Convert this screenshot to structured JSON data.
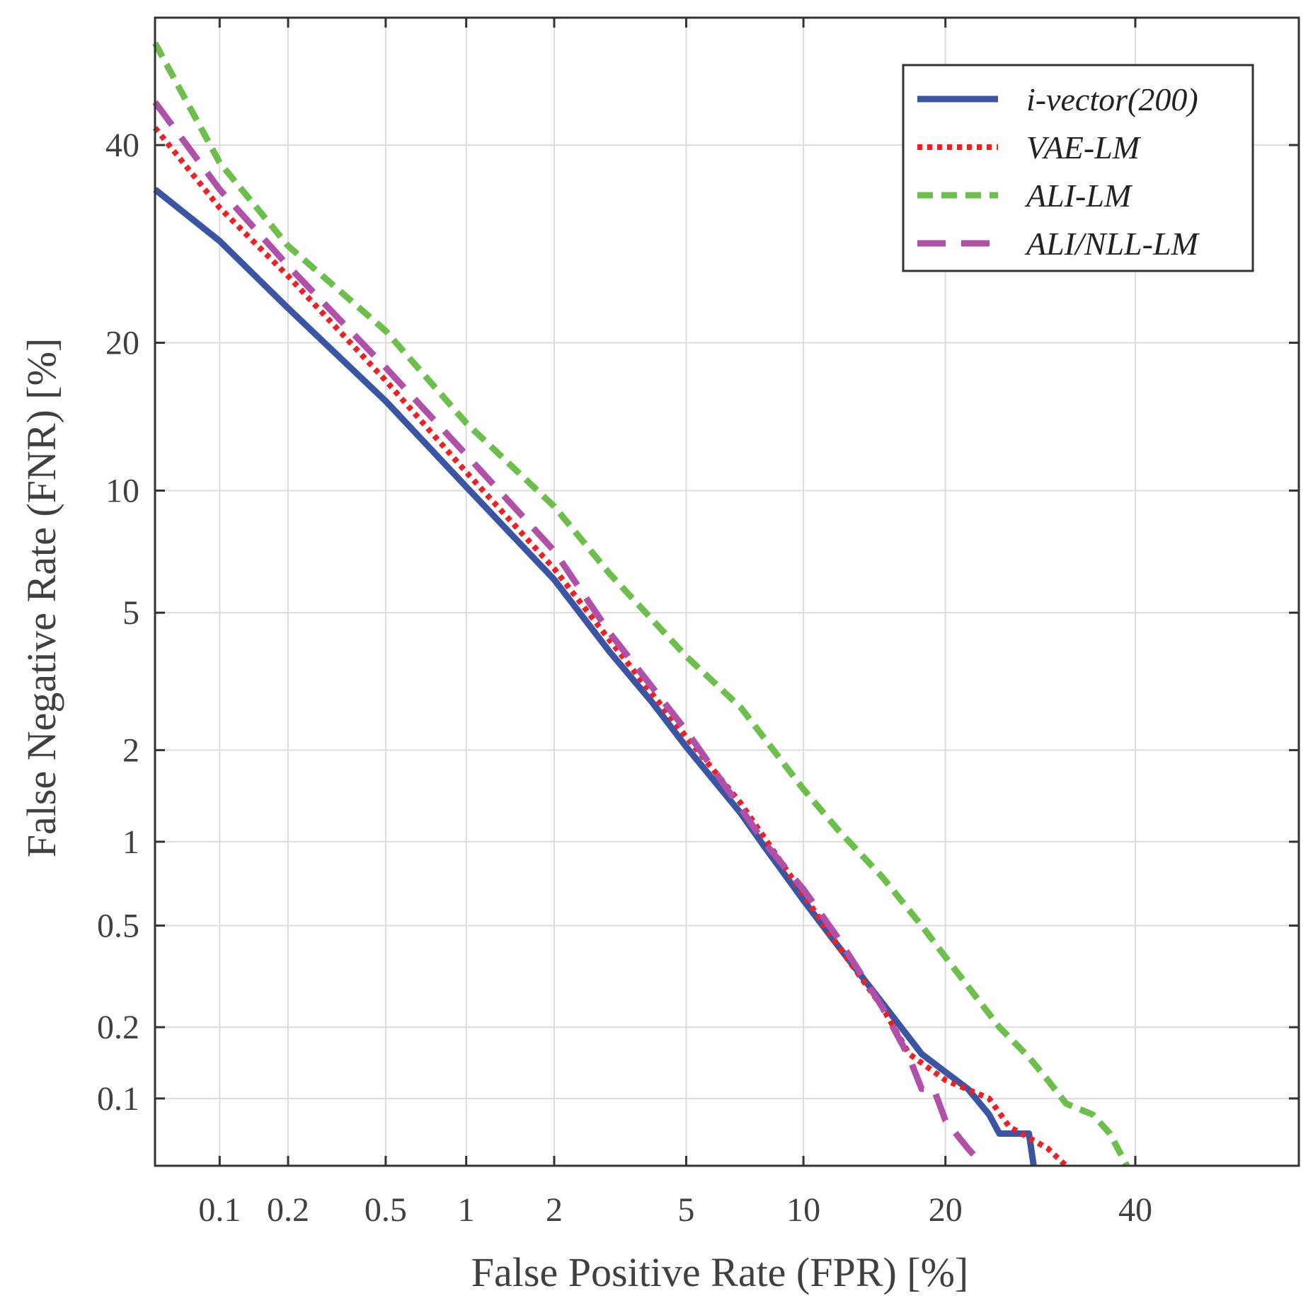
{
  "chart_data": {
    "type": "line",
    "subtype": "DET",
    "title": "",
    "xlabel": "False Positive Rate (FPR) [%]",
    "ylabel": "False Negative Rate (FNR) [%]",
    "scale": "probit",
    "xlim": [
      0.05,
      60
    ],
    "ylim": [
      0.05,
      55
    ],
    "grid": true,
    "legend_position": "top-right",
    "x_ticks": [
      0.1,
      0.2,
      0.5,
      1,
      2,
      5,
      10,
      20,
      40
    ],
    "x_tick_labels": [
      "0.1",
      "0.2",
      "0.5",
      "1",
      "2",
      "5",
      "10",
      "20",
      "40"
    ],
    "y_ticks": [
      0.1,
      0.2,
      0.5,
      1,
      2,
      5,
      10,
      20,
      40
    ],
    "y_tick_labels": [
      "0.1",
      "0.2",
      "0.5",
      "1",
      "2",
      "5",
      "10",
      "20",
      "40"
    ],
    "series": [
      {
        "name": "i-vector(200)",
        "color": "#3a55a4",
        "style": "solid",
        "points": [
          [
            0.05,
            35
          ],
          [
            0.1,
            29.5
          ],
          [
            0.2,
            23
          ],
          [
            0.5,
            15.5
          ],
          [
            1,
            10.2
          ],
          [
            2,
            6.1
          ],
          [
            3,
            3.9
          ],
          [
            4,
            2.8
          ],
          [
            5,
            2.05
          ],
          [
            7,
            1.25
          ],
          [
            8,
            0.97
          ],
          [
            10,
            0.62
          ],
          [
            12,
            0.42
          ],
          [
            15,
            0.25
          ],
          [
            18,
            0.155
          ],
          [
            20,
            0.13
          ],
          [
            22,
            0.11
          ],
          [
            24,
            0.085
          ],
          [
            25,
            0.07
          ],
          [
            28,
            0.07
          ],
          [
            28.5,
            0.05
          ]
        ]
      },
      {
        "name": "VAE-LM",
        "color": "#ee2024",
        "style": "dotted",
        "points": [
          [
            0.05,
            42
          ],
          [
            0.1,
            33
          ],
          [
            0.2,
            26
          ],
          [
            0.5,
            17
          ],
          [
            1,
            11
          ],
          [
            2,
            6.5
          ],
          [
            3,
            4.2
          ],
          [
            5,
            2.2
          ],
          [
            7,
            1.35
          ],
          [
            10,
            0.65
          ],
          [
            12,
            0.42
          ],
          [
            15,
            0.24
          ],
          [
            17,
            0.155
          ],
          [
            20,
            0.12
          ],
          [
            24,
            0.1
          ],
          [
            26,
            0.075
          ],
          [
            30,
            0.06
          ],
          [
            32,
            0.05
          ]
        ]
      },
      {
        "name": "ALI-LM",
        "color": "#6dbf4b",
        "style": "dashed",
        "points": [
          [
            0.05,
            52
          ],
          [
            0.1,
            38
          ],
          [
            0.2,
            29
          ],
          [
            0.5,
            21
          ],
          [
            1,
            14
          ],
          [
            2,
            9.2
          ],
          [
            3,
            6.3
          ],
          [
            5,
            3.8
          ],
          [
            7,
            2.7
          ],
          [
            10,
            1.5
          ],
          [
            12,
            1.1
          ],
          [
            15,
            0.75
          ],
          [
            18,
            0.5
          ],
          [
            20,
            0.38
          ],
          [
            25,
            0.2
          ],
          [
            28,
            0.15
          ],
          [
            30,
            0.12
          ],
          [
            32,
            0.095
          ],
          [
            35,
            0.085
          ],
          [
            37,
            0.07
          ],
          [
            39,
            0.05
          ]
        ]
      },
      {
        "name": "ALI/NLL-LM",
        "color": "#b050a8",
        "style": "longdash",
        "points": [
          [
            0.05,
            45
          ],
          [
            0.1,
            35
          ],
          [
            0.2,
            27
          ],
          [
            0.5,
            18
          ],
          [
            1,
            12
          ],
          [
            2,
            7.2
          ],
          [
            3,
            4.4
          ],
          [
            5,
            2.3
          ],
          [
            7,
            1.3
          ],
          [
            8,
            1
          ],
          [
            10,
            0.68
          ],
          [
            12,
            0.45
          ],
          [
            15,
            0.24
          ],
          [
            17,
            0.15
          ],
          [
            18,
            0.11
          ],
          [
            19,
            0.11
          ],
          [
            20,
            0.08
          ],
          [
            22,
            0.06
          ],
          [
            23.5,
            0.05
          ]
        ]
      }
    ]
  }
}
